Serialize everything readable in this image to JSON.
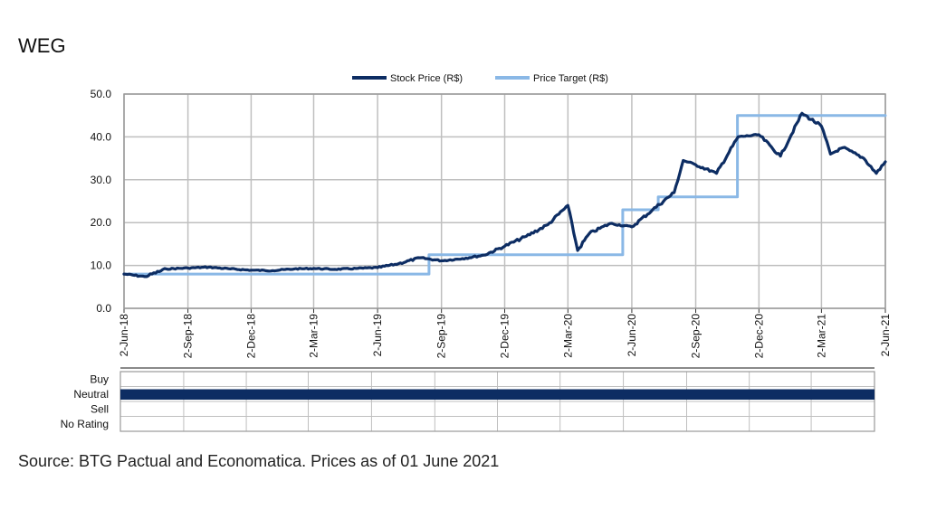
{
  "title": "WEG",
  "source": "Source: BTG Pactual and Economatica. Prices as of 01 June 2021",
  "colors": {
    "stock": "#0d2d63",
    "target": "#8ab8e6",
    "grid": "#bfbfbf",
    "rating": "#0d2d63"
  },
  "chart_data": [
    {
      "type": "line",
      "title": "WEG",
      "legend": {
        "position": "top-center"
      },
      "ylim": [
        0,
        50
      ],
      "yticks": [
        "0.0",
        "10.0",
        "20.0",
        "30.0",
        "40.0",
        "50.0"
      ],
      "xticks": [
        "2-Jun-18",
        "2-Sep-18",
        "2-Dec-18",
        "2-Mar-19",
        "2-Jun-19",
        "2-Sep-19",
        "2-Dec-19",
        "2-Mar-20",
        "2-Jun-20",
        "2-Sep-20",
        "2-Dec-20",
        "2-Mar-21",
        "2-Jun-21"
      ],
      "grid": true,
      "series": [
        {
          "name": "Stock Price (R$)",
          "color": "#0d2d63",
          "points": [
            [
              "2-Jun-18",
              8.0
            ],
            [
              "2-Jul-18",
              7.4
            ],
            [
              "2-Aug-18",
              9.2
            ],
            [
              "2-Sep-18",
              9.4
            ],
            [
              "2-Oct-18",
              9.6
            ],
            [
              "2-Nov-18",
              9.2
            ],
            [
              "2-Dec-18",
              8.9
            ],
            [
              "2-Jan-19",
              8.8
            ],
            [
              "2-Feb-19",
              9.2
            ],
            [
              "2-Mar-19",
              9.3
            ],
            [
              "2-Apr-19",
              9.1
            ],
            [
              "2-May-19",
              9.3
            ],
            [
              "2-Jun-19",
              9.5
            ],
            [
              "2-Jul-19",
              10.4
            ],
            [
              "2-Aug-19",
              11.8
            ],
            [
              "2-Sep-19",
              11.1
            ],
            [
              "2-Oct-19",
              11.6
            ],
            [
              "2-Nov-19",
              12.4
            ],
            [
              "2-Dec-19",
              14.5
            ],
            [
              "2-Jan-20",
              16.8
            ],
            [
              "2-Feb-20",
              19.5
            ],
            [
              "2-Mar-20",
              24.0
            ],
            [
              "16-Mar-20",
              13.5
            ],
            [
              "2-Apr-20",
              17.5
            ],
            [
              "2-May-20",
              19.8
            ],
            [
              "2-Jun-20",
              19.0
            ],
            [
              "2-Jul-20",
              23.0
            ],
            [
              "2-Aug-20",
              27.0
            ],
            [
              "15-Aug-20",
              34.5
            ],
            [
              "2-Sep-20",
              33.5
            ],
            [
              "2-Oct-20",
              31.5
            ],
            [
              "2-Nov-20",
              40.0
            ],
            [
              "2-Dec-20",
              40.5
            ],
            [
              "2-Jan-21",
              35.5
            ],
            [
              "2-Feb-21",
              45.5
            ],
            [
              "2-Mar-21",
              42.5
            ],
            [
              "15-Mar-21",
              36.0
            ],
            [
              "2-Apr-21",
              37.5
            ],
            [
              "2-May-21",
              35.0
            ],
            [
              "20-May-21",
              31.5
            ],
            [
              "2-Jun-21",
              34.2
            ]
          ]
        },
        {
          "name": "Price Target (R$)",
          "color": "#8ab8e6",
          "step": true,
          "points": [
            [
              "2-Jun-18",
              8.0
            ],
            [
              "15-Aug-19",
              8.0
            ],
            [
              "15-Aug-19",
              12.5
            ],
            [
              "20-May-20",
              12.5
            ],
            [
              "20-May-20",
              23.0
            ],
            [
              "10-Jul-20",
              23.0
            ],
            [
              "10-Jul-20",
              26.0
            ],
            [
              "1-Nov-20",
              26.0
            ],
            [
              "1-Nov-20",
              45.0
            ],
            [
              "2-Jun-21",
              45.0
            ]
          ]
        }
      ]
    },
    {
      "type": "rating-timeline",
      "categories": [
        "Buy",
        "Neutral",
        "Sell",
        "No Rating"
      ],
      "bars": [
        {
          "rating": "Neutral",
          "from": "2-Jun-18",
          "to": "2-Jun-21"
        }
      ]
    }
  ]
}
